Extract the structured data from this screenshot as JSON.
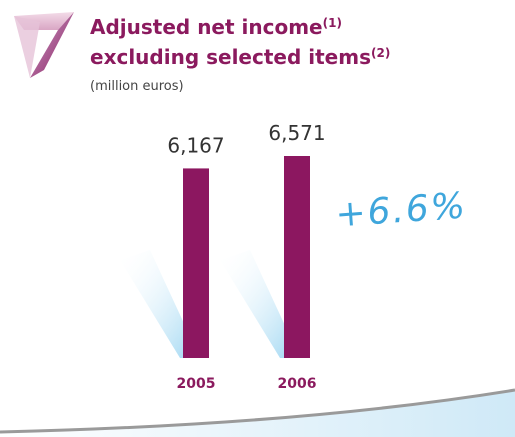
{
  "chart_data": {
    "type": "bar",
    "title": "Adjusted net income",
    "title_note": "(1)",
    "title_line2": "excluding selected items",
    "title_line2_note": "(2)",
    "subtitle": "(million euros)",
    "categories": [
      "2005",
      "2006"
    ],
    "values": [
      6167,
      6571
    ],
    "value_labels": [
      "6,167",
      "6,571"
    ],
    "color": "#8c1760",
    "annotation": "+6.6%"
  }
}
